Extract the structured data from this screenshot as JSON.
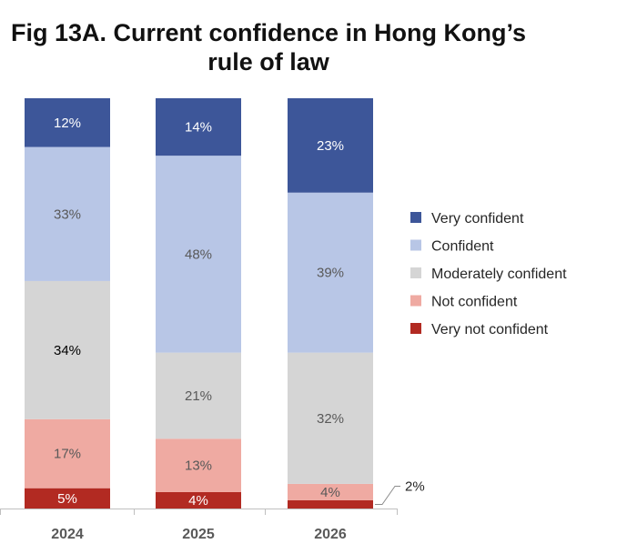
{
  "chart_data": {
    "type": "bar",
    "stacked": true,
    "title_line1": "Fig 13A. Current confidence in Hong Kong’s",
    "title_line2": "rule of law",
    "categories": [
      "2024",
      "2025",
      "2026"
    ],
    "series": [
      {
        "name": "Very not confident",
        "color": "#b22a22",
        "values": [
          5,
          4,
          2
        ],
        "labels": [
          "5%",
          "4%",
          "2%"
        ]
      },
      {
        "name": "Not confident",
        "color": "#efaaa2",
        "values": [
          17,
          13,
          4
        ],
        "labels": [
          "17%",
          "13%",
          "4%"
        ]
      },
      {
        "name": "Moderately confident",
        "color": "#d5d5d5",
        "values": [
          34,
          21,
          32
        ],
        "labels": [
          "34%",
          "21%",
          "32%"
        ]
      },
      {
        "name": "Confident",
        "color": "#b8c6e6",
        "values": [
          33,
          48,
          39
        ],
        "labels": [
          "33%",
          "48%",
          "39%"
        ]
      },
      {
        "name": "Very confident",
        "color": "#3d5699",
        "values": [
          12,
          14,
          23
        ],
        "labels": [
          "12%",
          "14%",
          "23%"
        ]
      }
    ],
    "legend": [
      "Very confident",
      "Confident",
      "Moderately confident",
      "Not confident",
      "Very not confident"
    ],
    "label_colors": {
      "Very not confident": "#ffffff",
      "Not confident": "#595959",
      "Moderately confident": "#595959",
      "Confident": "#595959",
      "Very confident": "#ffffff"
    },
    "highlight_label": {
      "category": "2024",
      "series": "Moderately confident",
      "color": "#000000"
    },
    "callout": {
      "category": "2026",
      "series": "Very not confident",
      "text": "2%"
    },
    "ylim": [
      0,
      100
    ],
    "legend_position": "right"
  }
}
